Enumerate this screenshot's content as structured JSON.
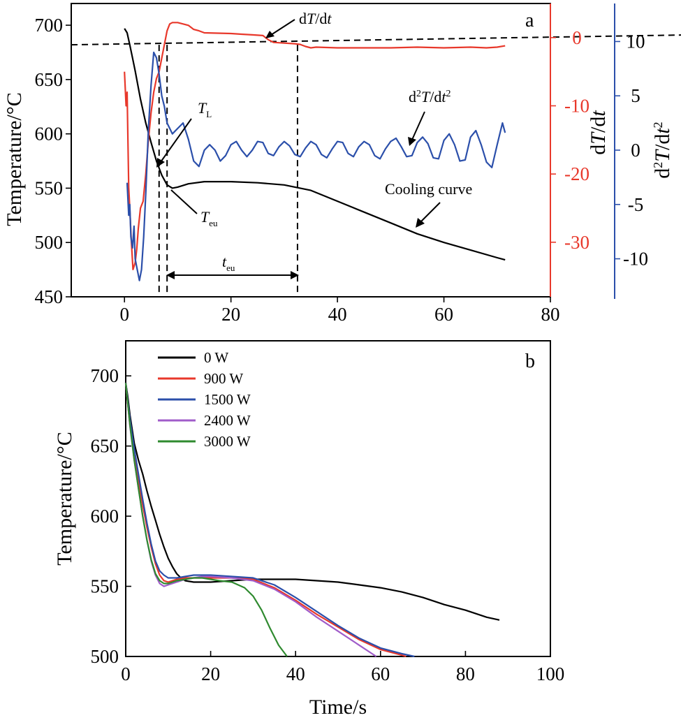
{
  "chart_data": [
    {
      "panel_label": "a",
      "type": "line",
      "xlim": [
        -10,
        80
      ],
      "x_ticks": [
        0,
        20,
        40,
        60,
        80
      ],
      "axes": {
        "left": {
          "label_main": "Temperature/",
          "label_unit": "°C",
          "range": [
            450,
            720
          ],
          "ticks": [
            450,
            500,
            550,
            600,
            650,
            700
          ],
          "color": "#000000"
        },
        "right1": {
          "label_d": "d",
          "label_T": "T",
          "label_slash": "/d",
          "label_t": "t",
          "range": [
            -38,
            5
          ],
          "ticks": [
            -30,
            -20,
            -10,
            0
          ],
          "color": "#e8382b"
        },
        "right2": {
          "label_d": "d",
          "label_sup": "2",
          "label_T": "T",
          "label_slash": "/d",
          "label_t": "t",
          "range": [
            -13.5,
            13.5
          ],
          "ticks": [
            -10,
            -5,
            0,
            5,
            10
          ],
          "color": "#2b4faa"
        }
      },
      "series": [
        {
          "axis": "left",
          "color": "#000000",
          "x": [
            0,
            0.5,
            1,
            1.5,
            2,
            2.5,
            3,
            4,
            5,
            6,
            7,
            8,
            9,
            10,
            12,
            15,
            20,
            25,
            30,
            35,
            40,
            45,
            50,
            55,
            60,
            65,
            70,
            71.5
          ],
          "y": [
            697,
            693,
            682,
            670,
            658,
            645,
            632,
            610,
            592,
            575,
            562,
            553,
            550,
            551,
            554,
            556,
            556,
            555,
            553,
            548,
            538,
            528,
            518,
            508,
            500,
            493,
            486,
            484
          ]
        },
        {
          "axis": "right1",
          "color": "#e8382b",
          "x": [
            0,
            0.3,
            0.5,
            0.8,
            1,
            1.3,
            1.6,
            2,
            2.3,
            2.6,
            3,
            3.5,
            4,
            4.5,
            5,
            5.5,
            6,
            6.5,
            7,
            7.5,
            8,
            8.5,
            9,
            10,
            11,
            12,
            13,
            14,
            15,
            20,
            22,
            24,
            26,
            27,
            28,
            30,
            32,
            33,
            34,
            35,
            36,
            40,
            45,
            50,
            55,
            60,
            65,
            68,
            70,
            71.5
          ],
          "y": [
            -5,
            -10,
            -8,
            -22,
            -25,
            -30,
            -34,
            -33,
            -31,
            -28,
            -25,
            -24,
            -20,
            -15,
            -11,
            -8,
            -6,
            -5,
            -3,
            -1,
            1,
            2,
            2.2,
            2.2,
            2.0,
            1.8,
            1.2,
            1.0,
            0.7,
            0.6,
            0.5,
            0.4,
            0.3,
            -0.3,
            -0.7,
            -0.8,
            -0.9,
            -1.0,
            -1.3,
            -1.5,
            -1.4,
            -1.5,
            -1.5,
            -1.5,
            -1.4,
            -1.5,
            -1.4,
            -1.5,
            -1.4,
            -1.2
          ]
        },
        {
          "axis": "right2",
          "color": "#2b4faa",
          "x": [
            0.5,
            0.8,
            1,
            1.2,
            1.5,
            1.8,
            2,
            2.4,
            2.8,
            3.2,
            3.6,
            4,
            4.5,
            5,
            5.5,
            6,
            6.5,
            7,
            7.5,
            8,
            8.5,
            9,
            10,
            11,
            12,
            13,
            14,
            15,
            16,
            17,
            18,
            19,
            20,
            21,
            22,
            23,
            24,
            25,
            26,
            27,
            28,
            29,
            30,
            31,
            32,
            33,
            34,
            35,
            36,
            37,
            38,
            39,
            40,
            41,
            42,
            43,
            44,
            45,
            46,
            47,
            48,
            49,
            50,
            51,
            52,
            53,
            54,
            55,
            56,
            57,
            58,
            59,
            60,
            61,
            62,
            63,
            64,
            65,
            66,
            67,
            68,
            69,
            70,
            71,
            71.5
          ],
          "y": [
            -3,
            -6,
            -5,
            -8,
            -9,
            -7,
            -10,
            -11,
            -12,
            -11,
            -8,
            -4,
            2,
            6,
            9,
            8.5,
            7,
            5,
            4,
            2.5,
            2,
            1.5,
            2,
            2.5,
            1,
            -1,
            -1.5,
            0,
            0.5,
            0,
            -1,
            -0.5,
            0.5,
            0.8,
            0,
            -0.6,
            0,
            0.8,
            0.7,
            -0.3,
            -0.5,
            0.3,
            0.8,
            0.4,
            -0.4,
            -0.6,
            0.2,
            0.8,
            0.5,
            -0.4,
            -0.7,
            0.1,
            0.8,
            0.7,
            -0.3,
            -0.6,
            0.3,
            0.8,
            0.5,
            -0.5,
            -0.8,
            0.1,
            0.8,
            1.1,
            0.3,
            -0.6,
            -0.5,
            0.7,
            1.2,
            0.6,
            -0.7,
            -0.8,
            0.9,
            1.5,
            0.5,
            -1.0,
            -0.9,
            1.2,
            1.8,
            0.5,
            -1.1,
            -1.6,
            0.5,
            2.5,
            1.6
          ]
        }
      ],
      "reference_lines": [
        {
          "kind": "horizontal",
          "axis": "left",
          "y": 682
        },
        {
          "kind": "vertical",
          "x": 6.5,
          "y_top": 682
        },
        {
          "kind": "vertical",
          "x": 8,
          "y_top": 682
        },
        {
          "kind": "vertical",
          "x": 32.5,
          "y_top": 682
        }
      ],
      "annotations": {
        "dTdt": "dT/dt",
        "d2Tdt2": "d²T/dt²",
        "TL": "T_L",
        "Teu": "T_eu",
        "teu": "t_eu",
        "cooling_curve": "Cooling curve"
      }
    },
    {
      "panel_label": "b",
      "type": "line",
      "xlabel": "Time/s",
      "ylabel_main": "Temperature/",
      "ylabel_unit": "°C",
      "xlim": [
        0,
        100
      ],
      "ylim": [
        500,
        725
      ],
      "x_ticks": [
        0,
        20,
        40,
        60,
        80,
        100
      ],
      "y_ticks": [
        500,
        550,
        600,
        650,
        700
      ],
      "legend_position": "top-left",
      "series": [
        {
          "name": "0 W",
          "color": "#000000",
          "x": [
            0,
            0.5,
            1,
            2,
            3,
            4,
            5,
            6,
            7,
            8,
            9,
            10,
            11,
            12,
            13,
            14,
            16,
            18,
            20,
            25,
            30,
            35,
            40,
            45,
            50,
            55,
            60,
            65,
            70,
            75,
            80,
            85,
            88
          ],
          "y": [
            695,
            685,
            672,
            652,
            640,
            630,
            618,
            607,
            597,
            587,
            578,
            570,
            564,
            559,
            556,
            554,
            553,
            553,
            553,
            554,
            555,
            555,
            555,
            554,
            553,
            551,
            549,
            546,
            542,
            537,
            533,
            528,
            526
          ]
        },
        {
          "name": "900 W",
          "color": "#e8382b",
          "x": [
            0,
            0.5,
            1,
            2,
            3,
            4,
            5,
            6,
            7,
            8,
            9,
            10,
            12,
            14,
            16,
            18,
            20,
            25,
            30,
            35,
            40,
            45,
            50,
            55,
            60,
            65,
            66
          ],
          "y": [
            695,
            680,
            665,
            643,
            625,
            608,
            592,
            578,
            566,
            558,
            554,
            553,
            555,
            556,
            556,
            556,
            556,
            556,
            555,
            549,
            540,
            530,
            521,
            512,
            505,
            501,
            500
          ]
        },
        {
          "name": "1500 W",
          "color": "#2b4faa",
          "x": [
            0,
            0.5,
            1,
            2,
            3,
            4,
            5,
            6,
            7,
            8,
            9,
            10,
            12,
            14,
            16,
            18,
            20,
            25,
            30,
            35,
            40,
            45,
            50,
            55,
            60,
            65,
            68
          ],
          "y": [
            695,
            682,
            669,
            648,
            630,
            612,
            595,
            580,
            568,
            561,
            558,
            556,
            556,
            557,
            558,
            558,
            558,
            557,
            556,
            551,
            542,
            532,
            522,
            513,
            506,
            502,
            500
          ]
        },
        {
          "name": "2400 W",
          "color": "#a05cc9",
          "x": [
            0,
            0.5,
            1,
            2,
            3,
            4,
            5,
            6,
            7,
            8,
            9,
            10,
            12,
            14,
            16,
            18,
            20,
            25,
            30,
            35,
            40,
            45,
            50,
            55,
            59
          ],
          "y": [
            695,
            680,
            664,
            640,
            620,
            600,
            583,
            568,
            558,
            552,
            550,
            551,
            553,
            555,
            556,
            557,
            557,
            556,
            554,
            548,
            539,
            528,
            518,
            508,
            500
          ]
        },
        {
          "name": "3000 W",
          "color": "#2f8a2f",
          "x": [
            0,
            0.5,
            1,
            2,
            3,
            4,
            5,
            6,
            7,
            8,
            9,
            10,
            12,
            14,
            16,
            18,
            20,
            22,
            25,
            28,
            30,
            32,
            34,
            36,
            38
          ],
          "y": [
            695,
            680,
            665,
            640,
            620,
            600,
            583,
            569,
            559,
            554,
            552,
            552,
            554,
            555,
            556,
            556,
            555,
            554,
            553,
            549,
            543,
            533,
            520,
            508,
            500
          ]
        }
      ]
    }
  ]
}
